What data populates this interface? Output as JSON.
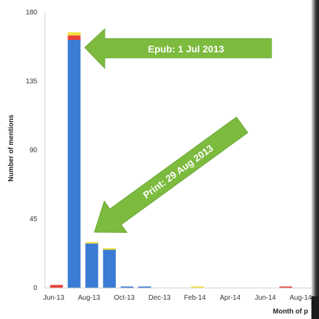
{
  "chart_data": {
    "type": "bar",
    "stacked": true,
    "xlabel": "Month of p",
    "ylabel": "Number of mentions",
    "ylim": [
      0,
      180
    ],
    "yticks": [
      0,
      45,
      90,
      135,
      180
    ],
    "xtick_labels": [
      "Jun-13",
      "Aug-13",
      "Oct-13",
      "Dec-13",
      "Feb-14",
      "Apr-14",
      "Jun-14",
      "Aug-14"
    ],
    "categories": [
      "Jun-13",
      "Jul-13",
      "Aug-13",
      "Sep-13",
      "Oct-13",
      "Nov-13",
      "Dec-13",
      "Jan-14",
      "Feb-14",
      "Mar-14",
      "Apr-14",
      "May-14",
      "Jun-14",
      "Jul-14",
      "Aug-14"
    ],
    "series": [
      {
        "color": "#3a7bd5",
        "values": [
          0,
          162,
          29,
          25,
          1,
          1,
          0,
          0,
          0,
          0,
          0,
          0,
          0,
          0,
          0
        ]
      },
      {
        "color": "#e8413a",
        "values": [
          2,
          3,
          0,
          0,
          0,
          0,
          0,
          0,
          0,
          0,
          0,
          0,
          0,
          1,
          0
        ]
      },
      {
        "color": "#f2e33a",
        "values": [
          0,
          2,
          1,
          1,
          0,
          0,
          0,
          0,
          1,
          0,
          0,
          0,
          0,
          0,
          0
        ]
      }
    ],
    "grid": false,
    "legend": "none",
    "annotations": [
      {
        "text": "Epub: 1 Jul 2013",
        "category": "Jul-13",
        "color": "#7dbb3f"
      },
      {
        "text": "Print: 29 Aug 2013",
        "category": "Aug-13",
        "color": "#7dbb3f"
      }
    ]
  }
}
